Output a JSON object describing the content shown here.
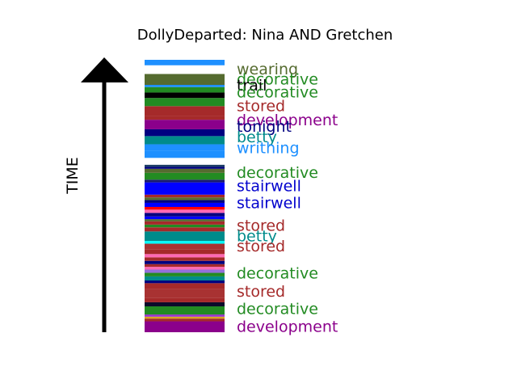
{
  "chart_data": {
    "type": "bar",
    "title": "DollyDeparted: Nina AND Gretchen",
    "ylabel": "TIME",
    "segments": [
      {
        "y0": 0.0,
        "y1": 0.04,
        "color": "#8b008b"
      },
      {
        "y0": 0.04,
        "y1": 0.05,
        "color": "#a52a2a"
      },
      {
        "y0": 0.05,
        "y1": 0.057,
        "color": "#daa520"
      },
      {
        "y0": 0.057,
        "y1": 0.065,
        "color": "#9932cc"
      },
      {
        "y0": 0.065,
        "y1": 0.095,
        "color": "#228b22"
      },
      {
        "y0": 0.095,
        "y1": 0.11,
        "color": "#0b0b2a"
      },
      {
        "y0": 0.11,
        "y1": 0.125,
        "color": "#a52a2a"
      },
      {
        "y0": 0.125,
        "y1": 0.16,
        "color": "#a83232"
      },
      {
        "y0": 0.16,
        "y1": 0.18,
        "color": "#a52a2a"
      },
      {
        "y0": 0.18,
        "y1": 0.19,
        "color": "#000080"
      },
      {
        "y0": 0.19,
        "y1": 0.205,
        "color": "#008b8b"
      },
      {
        "y0": 0.205,
        "y1": 0.218,
        "color": "#228b22"
      },
      {
        "y0": 0.218,
        "y1": 0.23,
        "color": "#9370db"
      },
      {
        "y0": 0.23,
        "y1": 0.24,
        "color": "#ff69b4"
      },
      {
        "y0": 0.24,
        "y1": 0.25,
        "color": "#a52a2a"
      },
      {
        "y0": 0.25,
        "y1": 0.262,
        "color": "#000080"
      },
      {
        "y0": 0.262,
        "y1": 0.275,
        "color": "#a52a2a"
      },
      {
        "y0": 0.275,
        "y1": 0.287,
        "color": "#ff69b4"
      },
      {
        "y0": 0.287,
        "y1": 0.305,
        "color": "#a52a2a"
      },
      {
        "y0": 0.305,
        "y1": 0.325,
        "color": "#a83232"
      },
      {
        "y0": 0.325,
        "y1": 0.335,
        "color": "#00ffff"
      },
      {
        "y0": 0.335,
        "y1": 0.37,
        "color": "#008b8b"
      },
      {
        "y0": 0.37,
        "y1": 0.385,
        "color": "#a52a2a"
      },
      {
        "y0": 0.385,
        "y1": 0.395,
        "color": "#228b22"
      },
      {
        "y0": 0.395,
        "y1": 0.407,
        "color": "#a52a2a"
      },
      {
        "y0": 0.407,
        "y1": 0.415,
        "color": "#556b2f"
      },
      {
        "y0": 0.415,
        "y1": 0.425,
        "color": "#0000ff"
      },
      {
        "y0": 0.425,
        "y1": 0.438,
        "color": "#000080"
      },
      {
        "y0": 0.438,
        "y1": 0.45,
        "color": "#ff69b4"
      },
      {
        "y0": 0.45,
        "y1": 0.46,
        "color": "#ff0000"
      },
      {
        "y0": 0.46,
        "y1": 0.475,
        "color": "#0000ff"
      },
      {
        "y0": 0.475,
        "y1": 0.485,
        "color": "#000080"
      },
      {
        "y0": 0.485,
        "y1": 0.495,
        "color": "#556b2f"
      },
      {
        "y0": 0.495,
        "y1": 0.505,
        "color": "#a52a2a"
      },
      {
        "y0": 0.505,
        "y1": 0.55,
        "color": "#0000ff"
      },
      {
        "y0": 0.55,
        "y1": 0.56,
        "color": "#191970"
      },
      {
        "y0": 0.56,
        "y1": 0.585,
        "color": "#228b22"
      },
      {
        "y0": 0.585,
        "y1": 0.6,
        "color": "#556b2f"
      },
      {
        "y0": 0.6,
        "y1": 0.607,
        "color": "#000080"
      },
      {
        "y0": 0.607,
        "y1": 0.615,
        "color": "#1e3f66"
      },
      {
        "y0": 0.615,
        "y1": 0.64,
        "color": "#ffffff"
      },
      {
        "y0": 0.64,
        "y1": 0.665,
        "color": "#1e90ff"
      },
      {
        "y0": 0.665,
        "y1": 0.69,
        "color": "#1e90ff"
      },
      {
        "y0": 0.69,
        "y1": 0.72,
        "color": "#008b8b"
      },
      {
        "y0": 0.72,
        "y1": 0.73,
        "color": "#000080"
      },
      {
        "y0": 0.73,
        "y1": 0.745,
        "color": "#000080"
      },
      {
        "y0": 0.745,
        "y1": 0.78,
        "color": "#8b008b"
      },
      {
        "y0": 0.78,
        "y1": 0.795,
        "color": "#a52a2a"
      },
      {
        "y0": 0.795,
        "y1": 0.83,
        "color": "#a52a2a"
      },
      {
        "y0": 0.83,
        "y1": 0.86,
        "color": "#228b22"
      },
      {
        "y0": 0.86,
        "y1": 0.88,
        "color": "#000000"
      },
      {
        "y0": 0.88,
        "y1": 0.9,
        "color": "#228b22"
      },
      {
        "y0": 0.9,
        "y1": 0.908,
        "color": "#1e90ff"
      },
      {
        "y0": 0.908,
        "y1": 0.948,
        "color": "#556b2f"
      },
      {
        "y0": 0.948,
        "y1": 0.98,
        "color": "#ffffff"
      },
      {
        "y0": 0.98,
        "y1": 1.0,
        "color": "#1e90ff"
      }
    ],
    "labels": [
      {
        "text": "wearing",
        "y": 0.965,
        "color": "#556b2f"
      },
      {
        "text": "decorative",
        "y": 0.928,
        "color": "#228b22"
      },
      {
        "text": "trail",
        "y": 0.905,
        "color": "#000000"
      },
      {
        "text": "decorative",
        "y": 0.88,
        "color": "#228b22"
      },
      {
        "text": "stored",
        "y": 0.83,
        "color": "#a52a2a"
      },
      {
        "text": "development",
        "y": 0.778,
        "color": "#8b008b"
      },
      {
        "text": "tonight",
        "y": 0.753,
        "color": "#000080"
      },
      {
        "text": "betty",
        "y": 0.715,
        "color": "#008b8b"
      },
      {
        "text": "writhing",
        "y": 0.675,
        "color": "#1e90ff"
      },
      {
        "text": "decorative",
        "y": 0.585,
        "color": "#228b22"
      },
      {
        "text": "stairwell",
        "y": 0.535,
        "color": "#0000cd"
      },
      {
        "text": "stairwell",
        "y": 0.473,
        "color": "#0000cd"
      },
      {
        "text": "stored",
        "y": 0.39,
        "color": "#a52a2a"
      },
      {
        "text": "betty",
        "y": 0.352,
        "color": "#008b8b"
      },
      {
        "text": "stored",
        "y": 0.315,
        "color": "#a52a2a"
      },
      {
        "text": "decorative",
        "y": 0.215,
        "color": "#228b22"
      },
      {
        "text": "stored",
        "y": 0.148,
        "color": "#a52a2a"
      },
      {
        "text": "decorative",
        "y": 0.085,
        "color": "#228b22"
      },
      {
        "text": "development",
        "y": 0.02,
        "color": "#8b008b"
      }
    ]
  }
}
